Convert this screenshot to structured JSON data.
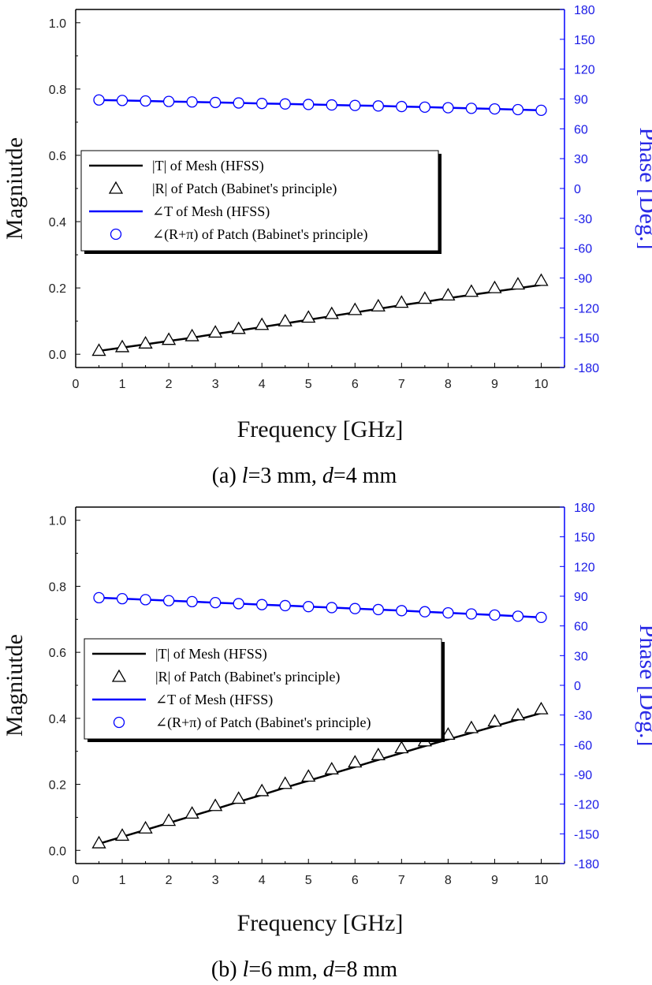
{
  "chart_data": [
    {
      "type": "line",
      "caption": {
        "prefix": "(a)",
        "l_var": "l",
        "l_val": "=3  mm,",
        "d_var": "d",
        "d_val": "=4  mm"
      },
      "xlabel": "Frequency [GHz]",
      "ylabel": "Magniutde",
      "y2label": "Phase [Deg.]",
      "xlim": [
        0,
        10.5
      ],
      "ylim": [
        -0.04,
        1.04
      ],
      "y2lim": [
        -180,
        180
      ],
      "xticks": [
        "0",
        "1",
        "2",
        "3",
        "4",
        "5",
        "6",
        "7",
        "8",
        "9",
        "10"
      ],
      "yticks": [
        "0.0",
        "0.2",
        "0.4",
        "0.6",
        "0.8",
        "1.0"
      ],
      "y2ticks": [
        "180",
        "150",
        "120",
        "90",
        "60",
        "30",
        "0",
        "-30",
        "-60",
        "-90",
        "-120",
        "-150",
        "-180"
      ],
      "legend": [
        "|T| of Mesh (HFSS)",
        "|R| of Patch (Babinet's principle)",
        "∠T of Mesh (HFSS)",
        "∠(R+π) of Patch (Babinet's principle)"
      ],
      "x": [
        0.5,
        1,
        1.5,
        2,
        2.5,
        3,
        3.5,
        4,
        4.5,
        5,
        5.5,
        6,
        6.5,
        7,
        7.5,
        8,
        8.5,
        9,
        9.5,
        10
      ],
      "series": [
        {
          "name": "|T| of Mesh (HFSS)",
          "axis": "left",
          "color": "#000000",
          "values": [
            0.01,
            0.02,
            0.03,
            0.04,
            0.05,
            0.061,
            0.071,
            0.082,
            0.093,
            0.104,
            0.115,
            0.126,
            0.137,
            0.148,
            0.158,
            0.169,
            0.179,
            0.189,
            0.199,
            0.209
          ]
        },
        {
          "name": "|R| of Patch (Babinet's principle)",
          "axis": "left",
          "color": "#000000",
          "values": [
            0.011,
            0.022,
            0.033,
            0.044,
            0.055,
            0.066,
            0.077,
            0.089,
            0.1,
            0.111,
            0.122,
            0.134,
            0.145,
            0.156,
            0.168,
            0.178,
            0.189,
            0.2,
            0.211,
            0.222
          ]
        },
        {
          "name": "∠T of Mesh (HFSS)",
          "axis": "right",
          "color": "#0000ff",
          "values": [
            89,
            88.5,
            88,
            87.5,
            87,
            86.5,
            86,
            85.5,
            85,
            84.5,
            84,
            83.5,
            83,
            82.4,
            81.8,
            81.2,
            80.6,
            80,
            79.3,
            78.6
          ]
        },
        {
          "name": "∠(R+π) of Patch (Babinet's principle)",
          "axis": "right",
          "color": "#0000ff",
          "values": [
            89,
            88.5,
            88,
            87.5,
            87,
            86.5,
            86,
            85.5,
            85,
            84.5,
            84,
            83.5,
            83,
            82.4,
            81.8,
            81.2,
            80.6,
            80,
            79.3,
            78.6
          ]
        }
      ]
    },
    {
      "type": "line",
      "caption": {
        "prefix": "(b)",
        "l_var": "l",
        "l_val": "=6  mm,",
        "d_var": "d",
        "d_val": "=8  mm"
      },
      "xlabel": "Frequency [GHz]",
      "ylabel": "Magniutde",
      "y2label": "Phase [Deg.]",
      "xlim": [
        0,
        10.5
      ],
      "ylim": [
        -0.04,
        1.04
      ],
      "y2lim": [
        -180,
        180
      ],
      "xticks": [
        "0",
        "1",
        "2",
        "3",
        "4",
        "5",
        "6",
        "7",
        "8",
        "9",
        "10"
      ],
      "yticks": [
        "0.0",
        "0.2",
        "0.4",
        "0.6",
        "0.8",
        "1.0"
      ],
      "y2ticks": [
        "180",
        "150",
        "120",
        "90",
        "60",
        "30",
        "0",
        "-30",
        "-60",
        "-90",
        "-120",
        "-150",
        "-180"
      ],
      "legend": [
        "|T| of Mesh (HFSS)",
        "|R| of Patch (Babinet's principle)",
        "∠T of Mesh (HFSS)",
        "∠(R+π) of Patch (Babinet's principle)"
      ],
      "x": [
        0.5,
        1,
        1.5,
        2,
        2.5,
        3,
        3.5,
        4,
        4.5,
        5,
        5.5,
        6,
        6.5,
        7,
        7.5,
        8,
        8.5,
        9,
        9.5,
        10
      ],
      "series": [
        {
          "name": "|T| of Mesh (HFSS)",
          "axis": "left",
          "color": "#000000",
          "values": [
            0.02,
            0.041,
            0.062,
            0.083,
            0.104,
            0.125,
            0.147,
            0.168,
            0.19,
            0.211,
            0.232,
            0.253,
            0.274,
            0.295,
            0.316,
            0.336,
            0.356,
            0.376,
            0.396,
            0.416
          ]
        },
        {
          "name": "|R| of Patch (Babinet's principle)",
          "axis": "left",
          "color": "#000000",
          "values": [
            0.022,
            0.045,
            0.067,
            0.09,
            0.112,
            0.135,
            0.157,
            0.18,
            0.202,
            0.224,
            0.246,
            0.267,
            0.289,
            0.31,
            0.331,
            0.351,
            0.371,
            0.391,
            0.41,
            0.428
          ]
        },
        {
          "name": "∠T of Mesh (HFSS)",
          "axis": "right",
          "color": "#0000ff",
          "values": [
            88.5,
            87.5,
            86.5,
            85.5,
            84.5,
            83.5,
            82.5,
            81.5,
            80.5,
            79.5,
            78.5,
            77.5,
            76.5,
            75.4,
            74.3,
            73.2,
            72.1,
            71,
            69.8,
            68.6
          ]
        },
        {
          "name": "∠(R+π) of Patch (Babinet's principle)",
          "axis": "right",
          "color": "#0000ff",
          "values": [
            88.5,
            87.5,
            86.5,
            85.5,
            84.5,
            83.5,
            82.5,
            81.5,
            80.5,
            79.5,
            78.5,
            77.5,
            76.5,
            75.4,
            74.3,
            73.2,
            72.1,
            71,
            69.8,
            68.6
          ]
        }
      ]
    }
  ]
}
